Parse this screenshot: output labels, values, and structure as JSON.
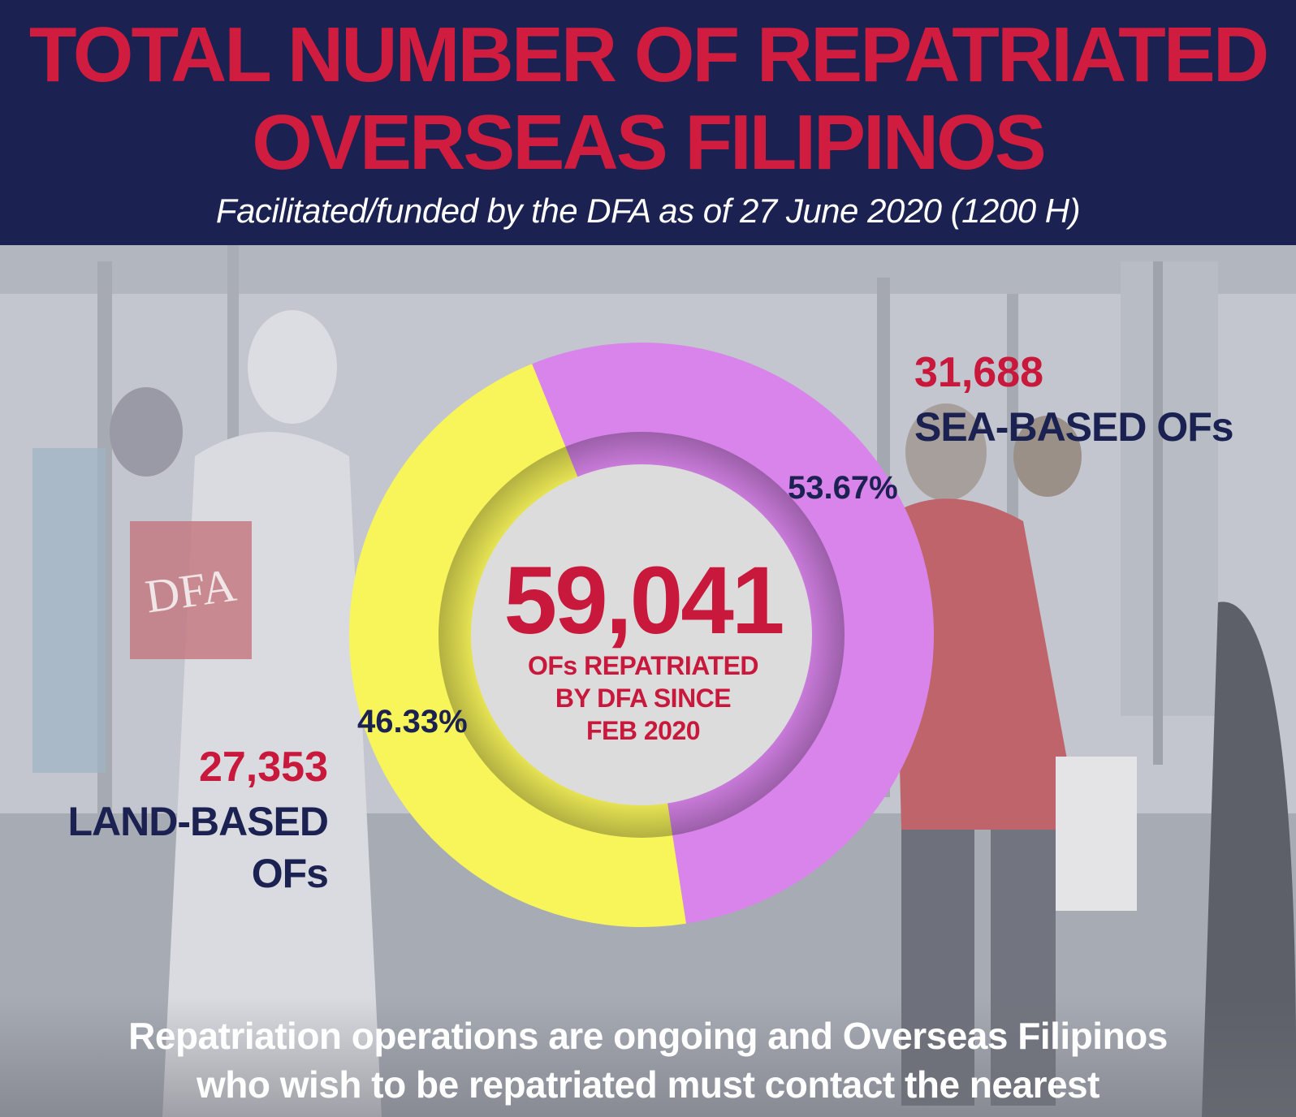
{
  "header": {
    "title_line1": "TOTAL NUMBER OF REPATRIATED",
    "title_line2": "OVERSEAS FILIPINOS",
    "subtitle": "Facilitated/funded by the DFA as of  27 June 2020 (1200 H)"
  },
  "background": {
    "badge_text": "DFA"
  },
  "center": {
    "total": "59,041",
    "caption_line1": "OFs REPATRIATED",
    "caption_line2": "BY DFA  SINCE",
    "caption_line3": "FEB 2020"
  },
  "chart_data": {
    "type": "pie",
    "donut": true,
    "total": 59041,
    "slices": [
      {
        "name_line1": "SEA-BASED OFs",
        "name_line2": "",
        "value": 31688,
        "value_label": "31,688",
        "percent": 53.67,
        "percent_label": "53.67%",
        "color": "#d884ea"
      },
      {
        "name_line1": "LAND-BASED",
        "name_line2": "OFs",
        "value": 27353,
        "value_label": "27,353",
        "percent": 46.33,
        "percent_label": "46.33%",
        "color": "#f8f55a"
      }
    ],
    "center_color": "#dcdcdc"
  },
  "footer": {
    "line1": "Repatriation operations are ongoing and Overseas Filipinos",
    "line2": "who wish to be repatriated must contact the nearest"
  }
}
